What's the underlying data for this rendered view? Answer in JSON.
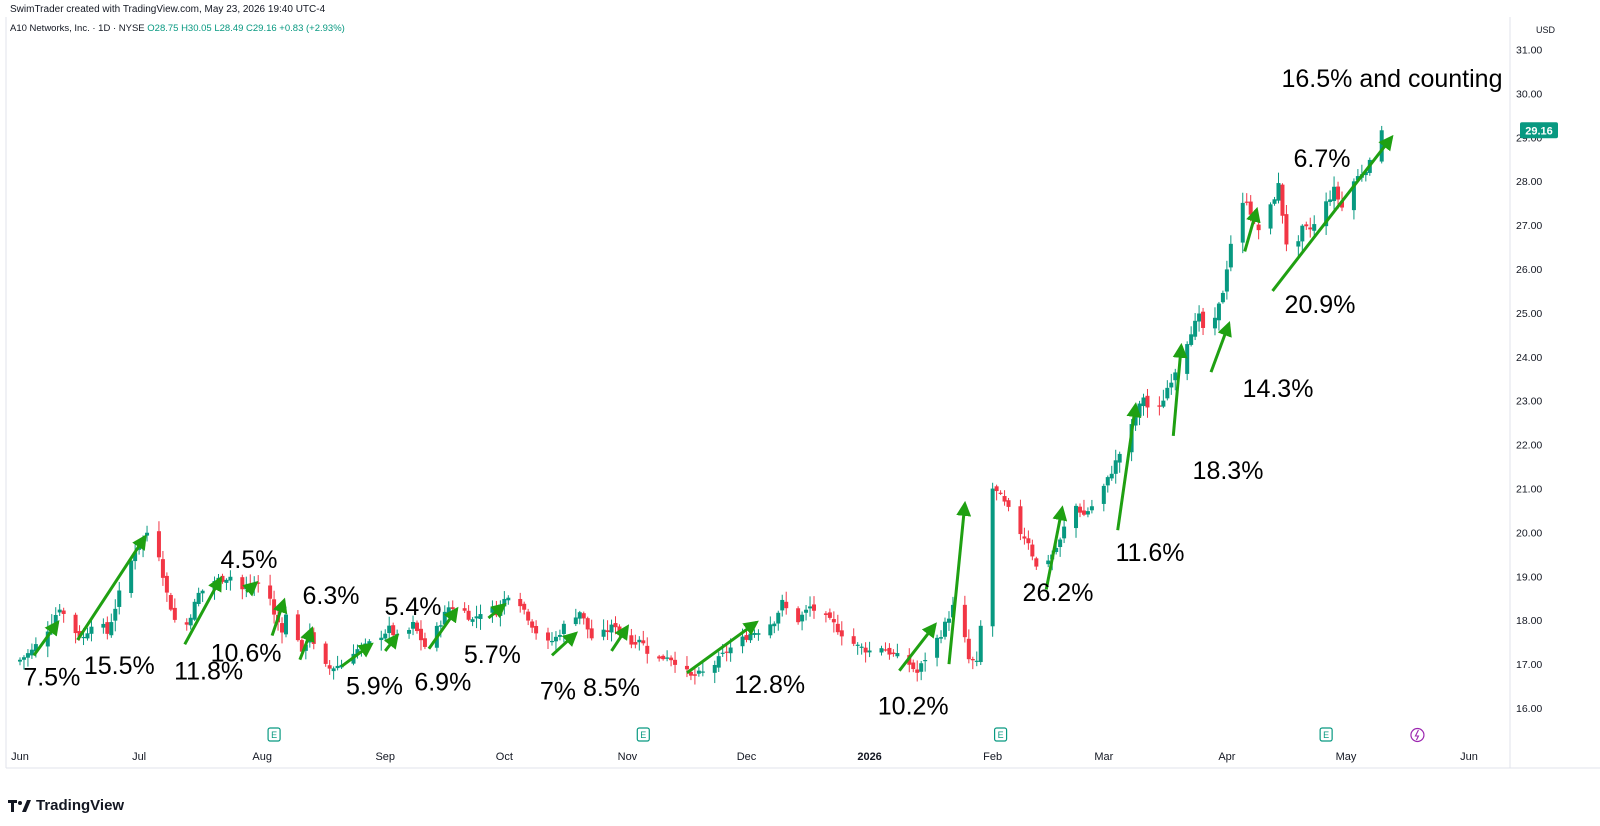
{
  "header": {
    "text": "SwimTrader created with TradingView.com, May 23, 2026 19:40 UTC-4"
  },
  "legend": {
    "symbol": "A10 Networks, Inc. · 1D · NYSE",
    "ohlc": "O28.75 H30.05 L28.49 C29.16 +0.83 (+2.93%)"
  },
  "footer": {
    "brand": "TradingView"
  },
  "chart_data": {
    "type": "candlestick",
    "currency": "USD",
    "last_price": "29.16",
    "ylim": [
      15.5,
      31.5
    ],
    "y_ticks": [
      "16.00",
      "17.00",
      "18.00",
      "19.00",
      "20.00",
      "21.00",
      "22.00",
      "23.00",
      "24.00",
      "25.00",
      "26.00",
      "27.00",
      "28.00",
      "29.00",
      "30.00",
      "31.00"
    ],
    "x_labels": [
      {
        "label": "Jun",
        "d": 0
      },
      {
        "label": "Jul",
        "d": 30
      },
      {
        "label": "Aug",
        "d": 61
      },
      {
        "label": "Sep",
        "d": 92
      },
      {
        "label": "Oct",
        "d": 122
      },
      {
        "label": "Nov",
        "d": 153
      },
      {
        "label": "Dec",
        "d": 183
      },
      {
        "label": "2026",
        "d": 214,
        "bold": true
      },
      {
        "label": "Feb",
        "d": 245
      },
      {
        "label": "Mar",
        "d": 273
      },
      {
        "label": "Apr",
        "d": 304
      },
      {
        "label": "May",
        "d": 334
      },
      {
        "label": "Jun",
        "d": 365
      }
    ],
    "earnings_markers_d": [
      64,
      157,
      247,
      329
    ],
    "dividend_marker_d": 352,
    "anchors": [
      [
        0,
        17.1
      ],
      [
        3,
        17.3
      ],
      [
        7,
        17.8
      ],
      [
        10,
        18.3
      ],
      [
        13,
        17.8
      ],
      [
        16,
        17.6
      ],
      [
        19,
        18.1
      ],
      [
        22,
        17.7
      ],
      [
        25,
        18.6
      ],
      [
        29,
        19.6
      ],
      [
        32,
        20.0
      ],
      [
        35,
        19.5
      ],
      [
        37,
        18.6
      ],
      [
        39,
        18.0
      ],
      [
        42,
        17.9
      ],
      [
        45,
        18.6
      ],
      [
        49,
        18.9
      ],
      [
        53,
        19.0
      ],
      [
        56,
        18.7
      ],
      [
        59,
        18.8
      ],
      [
        62,
        18.9
      ],
      [
        64,
        18.1
      ],
      [
        66,
        17.8
      ],
      [
        68,
        18.4
      ],
      [
        71,
        17.2
      ],
      [
        73,
        17.8
      ],
      [
        75,
        17.0
      ],
      [
        78,
        16.9
      ],
      [
        81,
        17.0
      ],
      [
        84,
        17.3
      ],
      [
        87,
        17.4
      ],
      [
        90,
        17.6
      ],
      [
        93,
        17.8
      ],
      [
        96,
        17.5
      ],
      [
        99,
        17.9
      ],
      [
        102,
        17.4
      ],
      [
        105,
        17.8
      ],
      [
        108,
        18.3
      ],
      [
        111,
        18.3
      ],
      [
        114,
        18.0
      ],
      [
        117,
        18.3
      ],
      [
        120,
        18.2
      ],
      [
        123,
        18.6
      ],
      [
        126,
        18.4
      ],
      [
        129,
        17.9
      ],
      [
        132,
        17.4
      ],
      [
        135,
        17.6
      ],
      [
        138,
        18.0
      ],
      [
        141,
        18.2
      ],
      [
        144,
        17.6
      ],
      [
        147,
        17.7
      ],
      [
        150,
        17.9
      ],
      [
        153,
        17.4
      ],
      [
        156,
        17.6
      ],
      [
        158,
        17.3
      ],
      [
        161,
        17.1
      ],
      [
        163,
        17.2
      ],
      [
        166,
        17.0
      ],
      [
        169,
        16.7
      ],
      [
        172,
        16.8
      ],
      [
        175,
        17.0
      ],
      [
        178,
        17.3
      ],
      [
        181,
        17.5
      ],
      [
        184,
        17.7
      ],
      [
        187,
        17.8
      ],
      [
        190,
        18.0
      ],
      [
        192,
        18.4
      ],
      [
        194,
        18.1
      ],
      [
        196,
        18.0
      ],
      [
        199,
        18.3
      ],
      [
        202,
        18.1
      ],
      [
        205,
        17.9
      ],
      [
        208,
        17.6
      ],
      [
        211,
        17.4
      ],
      [
        214,
        17.3
      ],
      [
        217,
        17.4
      ],
      [
        220,
        17.2
      ],
      [
        223,
        17.1
      ],
      [
        226,
        16.8
      ],
      [
        229,
        17.3
      ],
      [
        232,
        17.7
      ],
      [
        235,
        18.3
      ],
      [
        237,
        18.0
      ],
      [
        239,
        17.1
      ],
      [
        241,
        17.0
      ],
      [
        243,
        18.7
      ],
      [
        245,
        21.0
      ],
      [
        247,
        20.8
      ],
      [
        249,
        20.5
      ],
      [
        252,
        20.0
      ],
      [
        254,
        19.8
      ],
      [
        256,
        19.2
      ],
      [
        258,
        19.3
      ],
      [
        260,
        19.5
      ],
      [
        262,
        19.8
      ],
      [
        264,
        20.4
      ],
      [
        266,
        20.6
      ],
      [
        268,
        20.4
      ],
      [
        271,
        20.7
      ],
      [
        274,
        21.2
      ],
      [
        277,
        21.8
      ],
      [
        280,
        22.4
      ],
      [
        283,
        23.1
      ],
      [
        285,
        22.6
      ],
      [
        287,
        22.8
      ],
      [
        289,
        23.3
      ],
      [
        292,
        23.9
      ],
      [
        295,
        24.6
      ],
      [
        297,
        24.9
      ],
      [
        299,
        24.4
      ],
      [
        301,
        24.8
      ],
      [
        303,
        25.5
      ],
      [
        305,
        26.6
      ],
      [
        307,
        27.3
      ],
      [
        309,
        27.6
      ],
      [
        311,
        27.0
      ],
      [
        313,
        26.8
      ],
      [
        315,
        27.4
      ],
      [
        317,
        27.9
      ],
      [
        319,
        26.6
      ],
      [
        321,
        26.2
      ],
      [
        323,
        26.9
      ],
      [
        325,
        26.9
      ],
      [
        327,
        27.1
      ],
      [
        329,
        27.5
      ],
      [
        331,
        27.8
      ],
      [
        333,
        27.4
      ],
      [
        335,
        27.9
      ],
      [
        337,
        28.1
      ],
      [
        339,
        28.3
      ],
      [
        341,
        28.5
      ],
      [
        343,
        29.16
      ]
    ],
    "annotations": [
      {
        "text": "7.5%",
        "arrow_d": [
          3.5,
          9.5
        ],
        "arrow_v": [
          17.2,
          17.95
        ]
      },
      {
        "text": "15.5%",
        "arrow_d": [
          14.5,
          31.5
        ],
        "arrow_v": [
          17.55,
          19.9
        ]
      },
      {
        "text": "11.8%",
        "arrow_d": [
          41.5,
          50.5
        ],
        "arrow_v": [
          17.45,
          18.95
        ]
      },
      {
        "text": "4.5%",
        "arrow_d": [
          57,
          59.5
        ],
        "arrow_v": [
          18.65,
          18.85
        ]
      },
      {
        "text": "10.6%",
        "arrow_d": [
          63.5,
          66.5
        ],
        "arrow_v": [
          17.65,
          18.45
        ]
      },
      {
        "text": "6.3%",
        "arrow_d": [
          70.5,
          73.5
        ],
        "arrow_v": [
          17.1,
          17.8
        ]
      },
      {
        "text": "5.9%",
        "arrow_d": [
          81,
          88.5
        ],
        "arrow_v": [
          16.95,
          17.45
        ]
      },
      {
        "text": "5.4%",
        "arrow_d": [
          92,
          95
        ],
        "arrow_v": [
          17.3,
          17.65
        ]
      },
      {
        "text": "6.9%",
        "arrow_d": [
          103,
          110
        ],
        "arrow_v": [
          17.35,
          18.25
        ]
      },
      {
        "text": "5.7%",
        "arrow_d": [
          118,
          122
        ],
        "arrow_v": [
          18.05,
          18.35
        ]
      },
      {
        "text": "7%",
        "arrow_d": [
          134,
          140
        ],
        "arrow_v": [
          17.2,
          17.7
        ]
      },
      {
        "text": "8.5%",
        "arrow_d": [
          149,
          153
        ],
        "arrow_v": [
          17.3,
          17.85
        ]
      },
      {
        "text": "12.8%",
        "arrow_d": [
          168,
          185.5
        ],
        "arrow_v": [
          16.8,
          17.95
        ]
      },
      {
        "text": "10.2%",
        "arrow_d": [
          221.5,
          230.5
        ],
        "arrow_v": [
          16.85,
          17.9
        ]
      },
      {
        "text": "26.2%",
        "arrow_d": [
          234,
          238
        ],
        "arrow_v": [
          17.0,
          20.65
        ]
      },
      {
        "text": "11.6%",
        "arrow_d": [
          258.5,
          262.5
        ],
        "arrow_v": [
          18.7,
          20.55
        ]
      },
      {
        "text": "18.3%",
        "arrow_d": [
          276.5,
          281
        ],
        "arrow_v": [
          20.05,
          22.9
        ]
      },
      {
        "text": "14.3%",
        "arrow_d": [
          290.5,
          292.5
        ],
        "arrow_v": [
          22.2,
          24.25
        ]
      },
      {
        "text": "6.7%",
        "arrow_d": [
          300,
          304.5
        ],
        "arrow_v": [
          23.65,
          24.75
        ]
      },
      {
        "text": "20.9%",
        "arrow_d": [
          308.5,
          311.5
        ],
        "arrow_v": [
          26.4,
          27.35
        ]
      },
      {
        "text": "16.5% and counting",
        "arrow_d": [
          315.5,
          345.5
        ],
        "arrow_v": [
          25.5,
          29.0
        ]
      }
    ],
    "label_positions_note": "labels placed under or above their arrows"
  },
  "colors": {
    "up": "#089981",
    "down": "#f23645",
    "arrow": "#1fa012",
    "earnings": "#089981",
    "dividend": "#9c27b0"
  }
}
